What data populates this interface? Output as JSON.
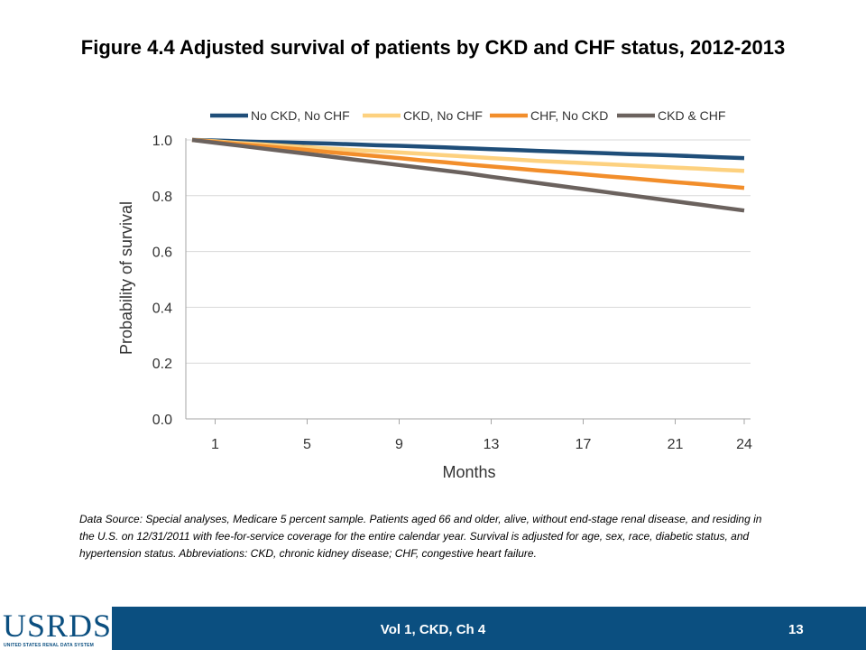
{
  "slide": {
    "title": "Figure 4.4 Adjusted survival of patients by CKD and CHF status, 2012-2013",
    "footnote": "Data Source: Special analyses, Medicare 5 percent sample. Patients aged 66 and older, alive, without end-stage renal disease, and residing in the U.S. on 12/31/2011 with fee-for-service coverage for the entire calendar year. Survival is adjusted for age, sex, race, diabetic status, and hypertension status. Abbreviations: CKD, chronic kidney disease; CHF, congestive heart failure.",
    "footer_label": "Vol 1, CKD, Ch 4",
    "page_number": "13",
    "logo_text": "USRDS",
    "logo_subtext": "UNITED STATES RENAL DATA SYSTEM"
  },
  "chart_data": {
    "type": "line",
    "xlabel": "Months",
    "ylabel": "Probability of survival",
    "xlim": [
      0,
      24
    ],
    "ylim": [
      0,
      1.0
    ],
    "xticks": [
      1,
      5,
      9,
      13,
      17,
      21,
      24
    ],
    "yticks": [
      "0.0",
      "0.2",
      "0.4",
      "0.6",
      "0.8",
      "1.0"
    ],
    "grid": "horizontal",
    "legend_position": "top",
    "series": [
      {
        "name": "No CKD, No CHF",
        "color": "#1f4e79",
        "x": [
          0,
          1,
          2,
          3,
          4,
          5,
          6,
          7,
          8,
          9,
          10,
          11,
          12,
          13,
          14,
          15,
          16,
          17,
          18,
          19,
          20,
          21,
          22,
          23,
          24
        ],
        "y": [
          1.0,
          0.998,
          0.995,
          0.993,
          0.991,
          0.989,
          0.987,
          0.984,
          0.981,
          0.979,
          0.976,
          0.973,
          0.97,
          0.967,
          0.964,
          0.961,
          0.958,
          0.955,
          0.952,
          0.949,
          0.947,
          0.944,
          0.941,
          0.938,
          0.935
        ]
      },
      {
        "name": "CKD, No CHF",
        "color": "#fdd17f",
        "x": [
          0,
          1,
          2,
          3,
          4,
          5,
          6,
          7,
          8,
          9,
          10,
          11,
          12,
          13,
          14,
          15,
          16,
          17,
          18,
          19,
          20,
          21,
          22,
          23,
          24
        ],
        "y": [
          1.0,
          0.995,
          0.989,
          0.984,
          0.979,
          0.974,
          0.969,
          0.964,
          0.96,
          0.955,
          0.95,
          0.945,
          0.94,
          0.935,
          0.93,
          0.925,
          0.921,
          0.917,
          0.913,
          0.909,
          0.905,
          0.901,
          0.897,
          0.893,
          0.889
        ]
      },
      {
        "name": "CHF, No CKD",
        "color": "#f28e2b",
        "x": [
          0,
          1,
          2,
          3,
          4,
          5,
          6,
          7,
          8,
          9,
          10,
          11,
          12,
          13,
          14,
          15,
          16,
          17,
          18,
          19,
          20,
          21,
          22,
          23,
          24
        ],
        "y": [
          1.0,
          0.993,
          0.985,
          0.978,
          0.971,
          0.964,
          0.956,
          0.949,
          0.942,
          0.935,
          0.927,
          0.92,
          0.912,
          0.905,
          0.898,
          0.891,
          0.884,
          0.877,
          0.87,
          0.863,
          0.856,
          0.849,
          0.842,
          0.835,
          0.828
        ]
      },
      {
        "name": "CKD & CHF",
        "color": "#6b625e",
        "x": [
          0,
          1,
          2,
          3,
          4,
          5,
          6,
          7,
          8,
          9,
          10,
          11,
          12,
          13,
          14,
          15,
          16,
          17,
          18,
          19,
          20,
          21,
          22,
          23,
          24
        ],
        "y": [
          1.0,
          0.99,
          0.98,
          0.97,
          0.96,
          0.95,
          0.94,
          0.93,
          0.92,
          0.91,
          0.9,
          0.89,
          0.88,
          0.868,
          0.857,
          0.846,
          0.835,
          0.824,
          0.813,
          0.802,
          0.791,
          0.78,
          0.769,
          0.758,
          0.747
        ]
      }
    ]
  }
}
